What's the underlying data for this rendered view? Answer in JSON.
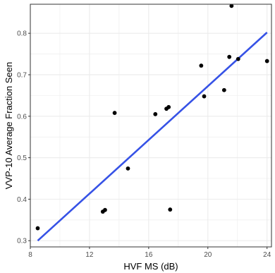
{
  "chart_data": {
    "type": "scatter",
    "xlabel": "HVF MS (dB)",
    "ylabel": "VVP-10 Average Fraction Seen",
    "xlim": [
      8,
      24.3
    ],
    "ylim": [
      0.285,
      0.87
    ],
    "x_ticks": [
      8,
      12,
      16,
      20,
      24
    ],
    "y_ticks": [
      0.3,
      0.4,
      0.5,
      0.6,
      0.7,
      0.8
    ],
    "x_tick_labels": [
      "8",
      "12",
      "16",
      "20",
      "24"
    ],
    "y_tick_labels": [
      "0.3",
      "0.4",
      "0.5",
      "0.6",
      "0.7",
      "0.8"
    ],
    "grid": true,
    "points": [
      {
        "x": 8.5,
        "y": 0.33
      },
      {
        "x": 12.9,
        "y": 0.37
      },
      {
        "x": 13.05,
        "y": 0.374
      },
      {
        "x": 13.7,
        "y": 0.608
      },
      {
        "x": 14.6,
        "y": 0.474
      },
      {
        "x": 16.45,
        "y": 0.605
      },
      {
        "x": 17.2,
        "y": 0.618
      },
      {
        "x": 17.35,
        "y": 0.622
      },
      {
        "x": 17.45,
        "y": 0.375
      },
      {
        "x": 19.55,
        "y": 0.722
      },
      {
        "x": 19.75,
        "y": 0.648
      },
      {
        "x": 21.1,
        "y": 0.663
      },
      {
        "x": 21.45,
        "y": 0.743
      },
      {
        "x": 21.6,
        "y": 0.866
      },
      {
        "x": 22.05,
        "y": 0.738
      },
      {
        "x": 24.0,
        "y": 0.733
      }
    ],
    "fit_line": {
      "x": [
        8.5,
        24.0
      ],
      "y": [
        0.3,
        0.802
      ]
    },
    "colors": {
      "points": "#000000",
      "fit_line": "#3652e6",
      "grid": "#ebebeb",
      "panel_border": "#333333"
    }
  }
}
